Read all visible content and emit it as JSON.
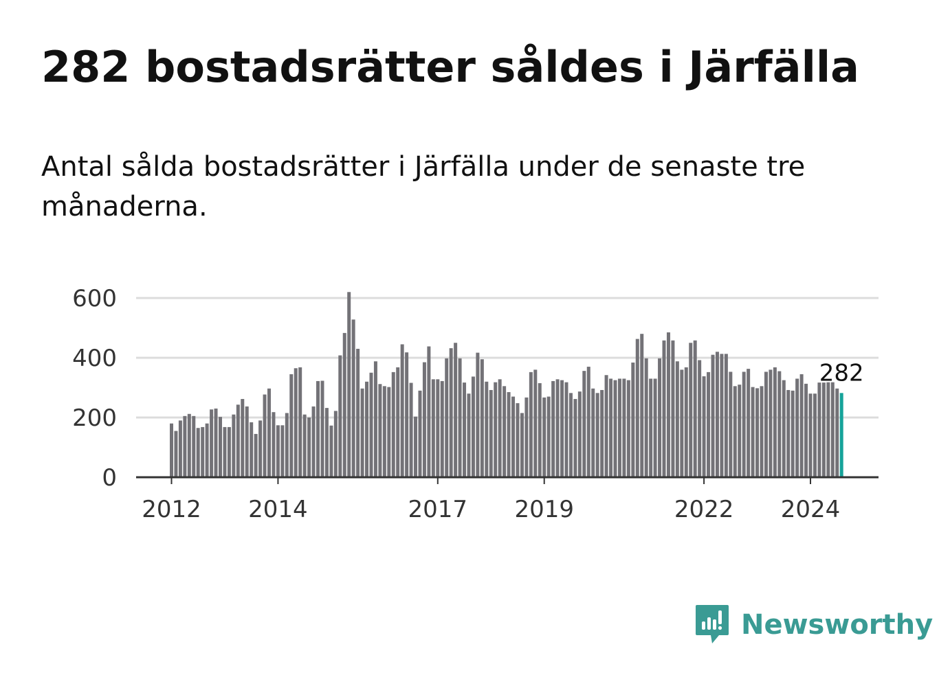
{
  "title": "282 bostadsrätter såldes i Järfälla",
  "subtitle": "Antal sålda bostadsrätter i Järfälla under de senaste tre månaderna.",
  "brand": {
    "name": "Newsworthy",
    "color": "#3a9b94"
  },
  "colors": {
    "bar": "#737277",
    "highlight": "#16a39a",
    "grid": "#dcdcdc",
    "axis": "#333333"
  },
  "chart_data": {
    "type": "bar",
    "title": "Antal sålda bostadsrätter i Järfälla",
    "xlabel": "",
    "ylabel": "",
    "ylim": [
      0,
      650
    ],
    "yticks": [
      0,
      200,
      400,
      600
    ],
    "xticks": [
      "2012",
      "2014",
      "2017",
      "2019",
      "2022",
      "2024"
    ],
    "grid": true,
    "start": "2012-01",
    "last_label": "282",
    "values": [
      180,
      155,
      190,
      205,
      212,
      205,
      165,
      168,
      180,
      227,
      230,
      202,
      168,
      168,
      210,
      243,
      262,
      237,
      184,
      145,
      190,
      277,
      297,
      218,
      174,
      174,
      215,
      345,
      365,
      368,
      210,
      200,
      237,
      322,
      323,
      232,
      173,
      222,
      408,
      483,
      620,
      528,
      430,
      297,
      320,
      350,
      388,
      312,
      305,
      302,
      352,
      368,
      445,
      418,
      316,
      203,
      290,
      385,
      438,
      328,
      328,
      322,
      398,
      432,
      450,
      398,
      317,
      280,
      337,
      417,
      395,
      320,
      292,
      318,
      328,
      305,
      285,
      270,
      248,
      215,
      267,
      352,
      360,
      315,
      267,
      270,
      322,
      328,
      325,
      318,
      282,
      262,
      287,
      356,
      370,
      297,
      282,
      292,
      342,
      330,
      325,
      330,
      330,
      325,
      384,
      463,
      480,
      398,
      330,
      330,
      398,
      458,
      485,
      458,
      388,
      360,
      368,
      450,
      458,
      392,
      338,
      352,
      410,
      420,
      413,
      413,
      353,
      305,
      310,
      353,
      363,
      302,
      298,
      305,
      353,
      360,
      368,
      355,
      325,
      292,
      290,
      330,
      345,
      313,
      280,
      280,
      317,
      317,
      318,
      318,
      297,
      282
    ]
  }
}
